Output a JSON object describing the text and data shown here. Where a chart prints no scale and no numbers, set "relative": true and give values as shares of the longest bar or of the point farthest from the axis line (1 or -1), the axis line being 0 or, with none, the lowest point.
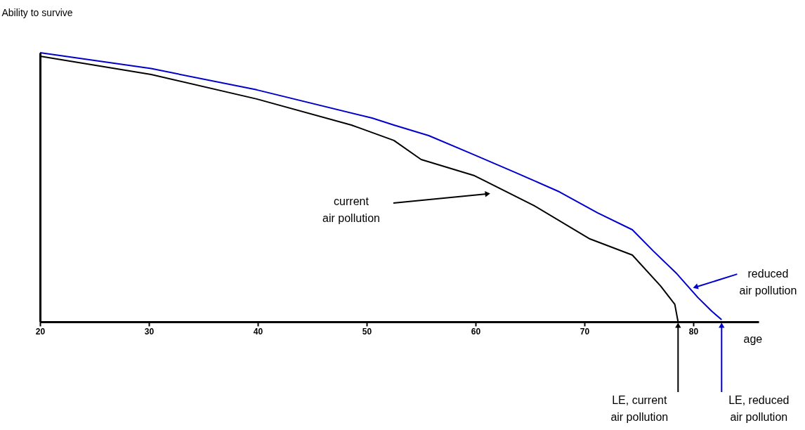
{
  "chart_data": {
    "type": "line",
    "xlabel": "age",
    "ylabel": "Ability to survive",
    "relative": true,
    "xlim": [
      20,
      86
    ],
    "xticks": [
      20,
      30,
      40,
      50,
      60,
      70,
      80
    ],
    "grid": false,
    "marker": "none",
    "line_style": "solid",
    "series": [
      {
        "color": "#0000cc",
        "x": [
          20,
          30.2,
          39.9,
          50.5,
          52.5,
          55.7,
          59.5,
          63.6,
          67.7,
          71.2,
          74.4,
          76.3,
          78.5,
          80.4,
          81.7,
          82.6
        ],
        "values": [
          1.0,
          0.941,
          0.862,
          0.757,
          0.731,
          0.692,
          0.627,
          0.556,
          0.483,
          0.405,
          0.342,
          0.264,
          0.178,
          0.091,
          0.039,
          0.008
        ]
      },
      {
        "color": "#000000",
        "x": [
          20,
          30.2,
          39.9,
          48.6,
          52.5,
          55.0,
          59.9,
          65.4,
          70.5,
          74.4,
          77.0,
          78.3,
          78.6
        ],
        "values": [
          0.987,
          0.919,
          0.828,
          0.731,
          0.674,
          0.603,
          0.543,
          0.431,
          0.308,
          0.248,
          0.133,
          0.065,
          0.0
        ]
      }
    ],
    "annotations": [
      "current\nair pollution",
      {
        "text": "reduced\nair pollution",
        "x": 79.9,
        "y": 0.125
      },
      {
        "text": "LE, current\nair pollution",
        "x": 78.6,
        "y": 0.0
      },
      {
        "text": "LE, reduced\nair pollution",
        "x": 82.6,
        "y": 0.0
      }
    ]
  }
}
